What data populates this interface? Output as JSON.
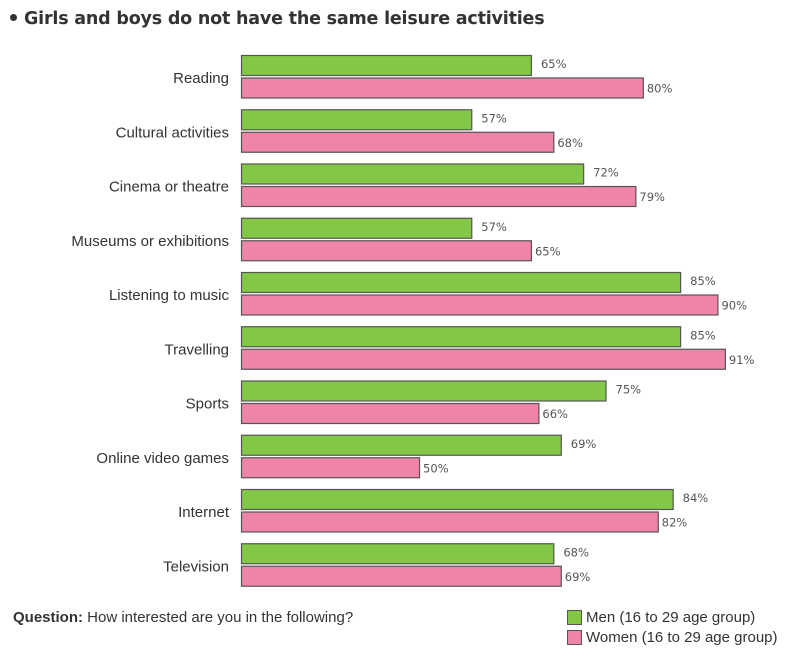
{
  "title": "Girls and boys do not have the same leisure activities",
  "question": {
    "label": "Question:",
    "text": "How interested are you in the following?"
  },
  "colors": {
    "men": "#82c846",
    "women": "#ee84a8",
    "border": "#555555"
  },
  "chart_data": {
    "type": "bar",
    "orientation": "horizontal",
    "title": "Girls and boys do not have the same leisure activities",
    "xlabel": "",
    "ylabel": "",
    "xlim": [
      26,
      100
    ],
    "grid": false,
    "legend_position": "bottom-right",
    "value_suffix": "%",
    "categories": [
      "Reading",
      "Cultural activities",
      "Cinema or theatre",
      "Museums or exhibitions",
      "Listening to music",
      "Travelling",
      "Sports",
      "Online video games",
      "Internet",
      "Television"
    ],
    "series": [
      {
        "name": "Men (16 to 29 age group)",
        "color": "#82c846",
        "values": [
          65,
          57,
          72,
          57,
          85,
          85,
          75,
          69,
          84,
          68
        ]
      },
      {
        "name": "Women (16 to 29 age group)",
        "color": "#ee84a8",
        "values": [
          80,
          68,
          79,
          65,
          90,
          91,
          66,
          50,
          82,
          69
        ]
      }
    ]
  }
}
